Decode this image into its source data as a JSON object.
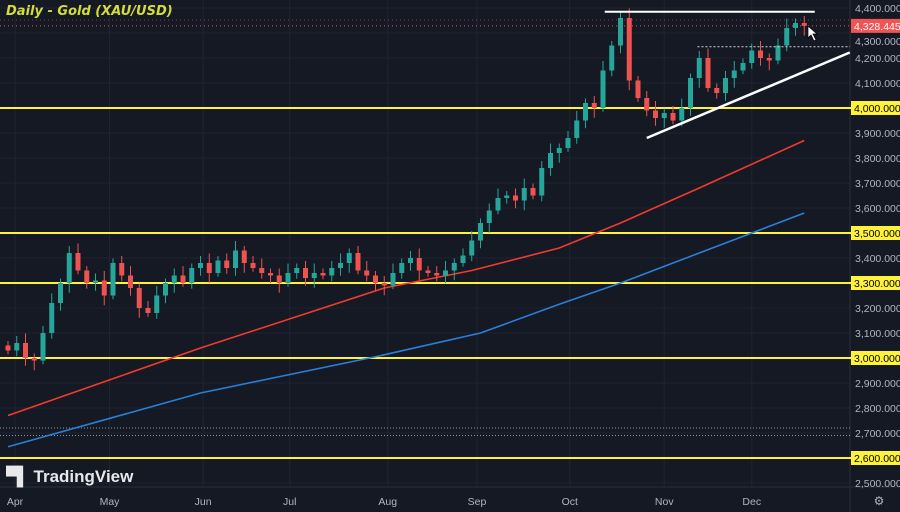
{
  "title": "Daily - Gold (XAU/USD)",
  "brand": "TradingView",
  "colors": {
    "background": "#151924",
    "bull": "#26a69a",
    "bear": "#ef5350",
    "level": "#fff23a",
    "ma_red": "#f23a2e",
    "ma_blue": "#2a7fd8",
    "drawing": "#ffffff",
    "price_label": "#f05454"
  },
  "icons": {
    "settings": "gear-icon",
    "cursor": "cursor-arrow-icon",
    "logo": "tradingview-logo"
  },
  "chart_data": {
    "type": "candlestick",
    "title": "Daily - Gold (XAU/USD)",
    "ylim": [
      2470,
      4440
    ],
    "yticks": [
      4400,
      4300,
      4200,
      4100,
      4000,
      3900,
      3800,
      3700,
      3600,
      3500,
      3400,
      3300,
      3200,
      3100,
      3000,
      2900,
      2800,
      2700,
      2600,
      2500
    ],
    "ytick_labels": [
      "4,400.000",
      "4,300.000",
      "4,200.000",
      "4,100.000",
      "4,000.000",
      "3,900.000",
      "3,800.000",
      "3,700.000",
      "3,600.000",
      "3,500.000",
      "3,400.000",
      "3,300.000",
      "3,200.000",
      "3,100.000",
      "3,000.000",
      "2,900.000",
      "2,800.000",
      "2,700.000",
      "2,600.000",
      "2,500.000"
    ],
    "xticks": [
      {
        "label": "Apr",
        "at": 0.8
      },
      {
        "label": "May",
        "at": 11.6
      },
      {
        "label": "Jun",
        "at": 22.3
      },
      {
        "label": "Jul",
        "at": 32.2
      },
      {
        "label": "Aug",
        "at": 43.4
      },
      {
        "label": "Sep",
        "at": 53.6
      },
      {
        "label": "Oct",
        "at": 64.2
      },
      {
        "label": "Nov",
        "at": 75
      },
      {
        "label": "Dec",
        "at": 85
      }
    ],
    "first_open": 3050,
    "closes": [
      3030,
      3060,
      3000,
      2990,
      3100,
      3220,
      3300,
      3420,
      3350,
      3300,
      3310,
      3250,
      3380,
      3330,
      3280,
      3200,
      3180,
      3250,
      3300,
      3330,
      3300,
      3360,
      3380,
      3340,
      3390,
      3360,
      3430,
      3380,
      3360,
      3340,
      3330,
      3300,
      3340,
      3360,
      3320,
      3340,
      3330,
      3360,
      3380,
      3420,
      3350,
      3330,
      3300,
      3290,
      3340,
      3380,
      3400,
      3350,
      3340,
      3330,
      3350,
      3380,
      3410,
      3470,
      3540,
      3590,
      3640,
      3650,
      3630,
      3680,
      3650,
      3760,
      3820,
      3840,
      3880,
      3950,
      4020,
      4000,
      4150,
      4250,
      4360,
      4110,
      4040,
      3990,
      3960,
      3980,
      3950,
      4000,
      4120,
      4200,
      4080,
      4060,
      4120,
      4150,
      4180,
      4230,
      4200,
      4190,
      4250,
      4320,
      4340,
      4328.445
    ],
    "last_price": 4328.445,
    "last_price_label": "4,328.445",
    "moving_averages": [
      {
        "color": "#f23a2e",
        "points": [
          [
            0,
            2770
          ],
          [
            22,
            3040
          ],
          [
            43,
            3280
          ],
          [
            53,
            3350
          ],
          [
            63,
            3440
          ],
          [
            70,
            3540
          ],
          [
            79,
            3680
          ],
          [
            91,
            3870
          ]
        ]
      },
      {
        "color": "#2a7fd8",
        "points": [
          [
            0,
            2645
          ],
          [
            22,
            2860
          ],
          [
            42,
            3005
          ],
          [
            54,
            3100
          ],
          [
            63,
            3215
          ],
          [
            70,
            3300
          ],
          [
            79,
            3420
          ],
          [
            91,
            3580
          ]
        ]
      }
    ],
    "horizontal_levels": [
      {
        "price": 4000,
        "label": "4,000.000"
      },
      {
        "price": 3500,
        "label": "3,500.000"
      },
      {
        "price": 3300,
        "label": "3,300.000"
      },
      {
        "price": 3000,
        "label": "3,000.000"
      },
      {
        "price": 2600,
        "label": "2,600.000"
      }
    ],
    "dotted_levels": [
      2720,
      2690
    ],
    "drawings": {
      "resistance": {
        "price": 4385,
        "from": 68.2,
        "to": 92.2
      },
      "trendline": {
        "from": [
          73,
          3880
        ],
        "to": [
          96.2,
          4222
        ]
      },
      "dotted_high": {
        "price": 4245,
        "from": 78.8
      }
    }
  }
}
